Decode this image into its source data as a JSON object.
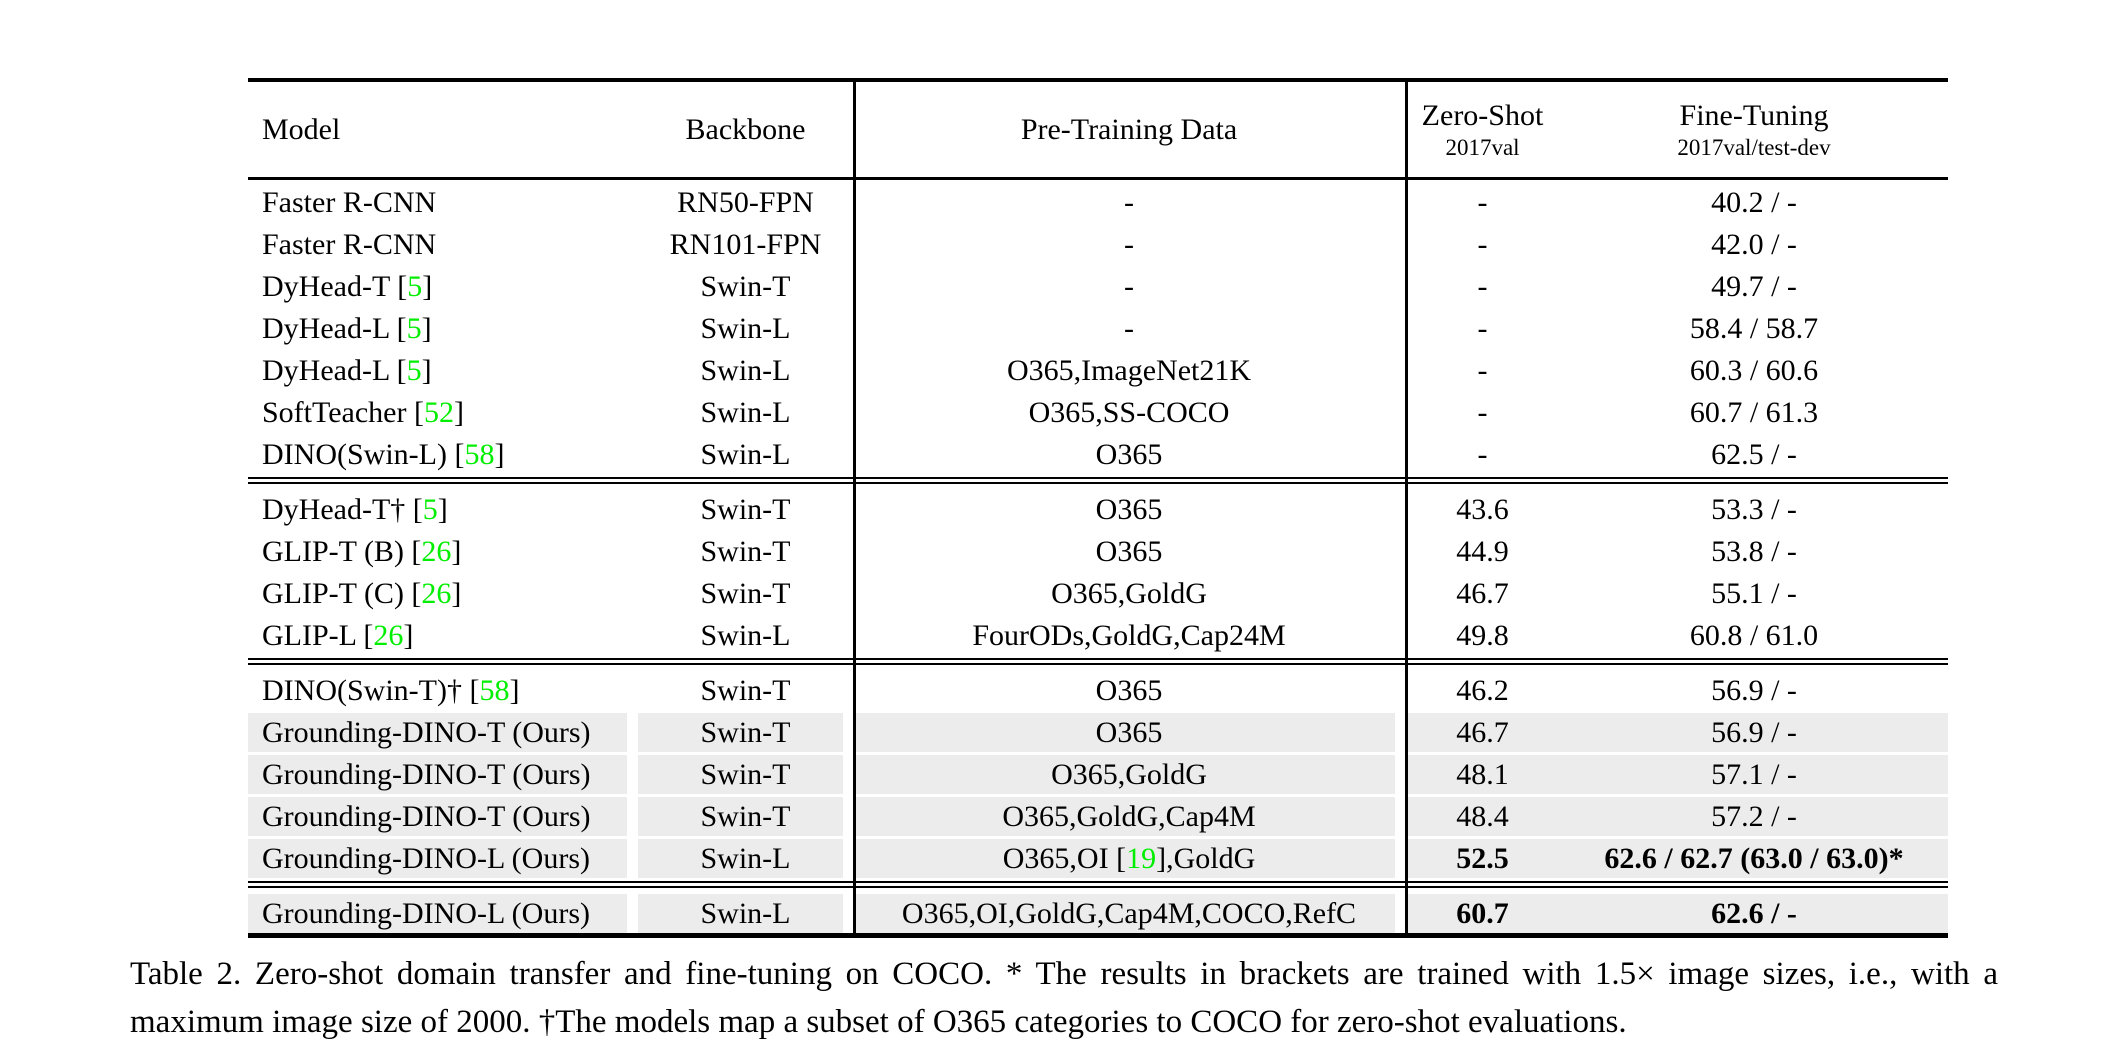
{
  "colors": {
    "citation_green": "#00ee00",
    "row_highlight": "#ececec",
    "rule_black": "#000000",
    "page_background": "#ffffff"
  },
  "table": {
    "headers": {
      "model": "Model",
      "backbone": "Backbone",
      "pretrain": "Pre-Training Data",
      "zeroshot_line1": "Zero-Shot",
      "zeroshot_line2": "2017val",
      "finetune_line1": "Fine-Tuning",
      "finetune_line2": "2017val/test-dev"
    },
    "sections": [
      {
        "rows": [
          {
            "model": "Faster R-CNN",
            "backbone": "RN50-FPN",
            "pretrain": "-",
            "zeroshot": "-",
            "finetune": "40.2 / -",
            "highlight": false,
            "bold": false
          },
          {
            "model": "Faster R-CNN",
            "backbone": "RN101-FPN",
            "pretrain": "-",
            "zeroshot": "-",
            "finetune": "42.0 / -",
            "highlight": false,
            "bold": false
          },
          {
            "model": "DyHead-T [5]",
            "backbone": "Swin-T",
            "pretrain": "-",
            "zeroshot": "-",
            "finetune": "49.7 / -",
            "highlight": false,
            "bold": false
          },
          {
            "model": "DyHead-L [5]",
            "backbone": "Swin-L",
            "pretrain": "-",
            "zeroshot": "-",
            "finetune": "58.4 / 58.7",
            "highlight": false,
            "bold": false
          },
          {
            "model": "DyHead-L [5]",
            "backbone": "Swin-L",
            "pretrain": "O365,ImageNet21K",
            "zeroshot": "-",
            "finetune": "60.3 / 60.6",
            "highlight": false,
            "bold": false
          },
          {
            "model": "SoftTeacher [52]",
            "backbone": "Swin-L",
            "pretrain": "O365,SS-COCO",
            "zeroshot": "-",
            "finetune": "60.7 / 61.3",
            "highlight": false,
            "bold": false
          },
          {
            "model": "DINO(Swin-L) [58]",
            "backbone": "Swin-L",
            "pretrain": "O365",
            "zeroshot": "-",
            "finetune": "62.5 / -",
            "highlight": false,
            "bold": false
          }
        ]
      },
      {
        "rows": [
          {
            "model": "DyHead-T† [5]",
            "backbone": "Swin-T",
            "pretrain": "O365",
            "zeroshot": "43.6",
            "finetune": "53.3 / -",
            "highlight": false,
            "bold": false
          },
          {
            "model": "GLIP-T (B) [26]",
            "backbone": "Swin-T",
            "pretrain": "O365",
            "zeroshot": "44.9",
            "finetune": "53.8 / -",
            "highlight": false,
            "bold": false
          },
          {
            "model": "GLIP-T (C) [26]",
            "backbone": "Swin-T",
            "pretrain": "O365,GoldG",
            "zeroshot": "46.7",
            "finetune": "55.1 / -",
            "highlight": false,
            "bold": false
          },
          {
            "model": "GLIP-L [26]",
            "backbone": "Swin-L",
            "pretrain": "FourODs,GoldG,Cap24M",
            "zeroshot": "49.8",
            "finetune": "60.8 / 61.0",
            "highlight": false,
            "bold": false
          }
        ]
      },
      {
        "rows": [
          {
            "model": "DINO(Swin-T)† [58]",
            "backbone": "Swin-T",
            "pretrain": "O365",
            "zeroshot": "46.2",
            "finetune": "56.9 / -",
            "highlight": false,
            "bold": false
          },
          {
            "model": "Grounding-DINO-T (Ours)",
            "backbone": "Swin-T",
            "pretrain": "O365",
            "zeroshot": "46.7",
            "finetune": "56.9 / -",
            "highlight": true,
            "bold": false
          },
          {
            "model": "Grounding-DINO-T (Ours)",
            "backbone": "Swin-T",
            "pretrain": "O365,GoldG",
            "zeroshot": "48.1",
            "finetune": "57.1 / -",
            "highlight": true,
            "bold": false
          },
          {
            "model": "Grounding-DINO-T (Ours)",
            "backbone": "Swin-T",
            "pretrain": "O365,GoldG,Cap4M",
            "zeroshot": "48.4",
            "finetune": "57.2 / -",
            "highlight": true,
            "bold": false
          },
          {
            "model": "Grounding-DINO-L (Ours)",
            "backbone": "Swin-L",
            "pretrain": "O365,OI [19],GoldG",
            "zeroshot": "52.5",
            "finetune": "62.6 / 62.7 (63.0 / 63.0)*",
            "highlight": true,
            "bold": true
          }
        ]
      },
      {
        "rows": [
          {
            "model": "Grounding-DINO-L (Ours)",
            "backbone": "Swin-L",
            "pretrain": "O365,OI,GoldG,Cap4M,COCO,RefC",
            "zeroshot": "60.7",
            "finetune": "62.6 / -",
            "highlight": true,
            "bold": true
          }
        ]
      }
    ]
  },
  "caption": {
    "text": "Table 2.  Zero-shot domain transfer and fine-tuning on COCO. * The results in brackets are trained with 1.5× image sizes, i.e., with a maximum image size of 2000. †The models map a subset of O365 categories to COCO for zero-shot evaluations."
  }
}
